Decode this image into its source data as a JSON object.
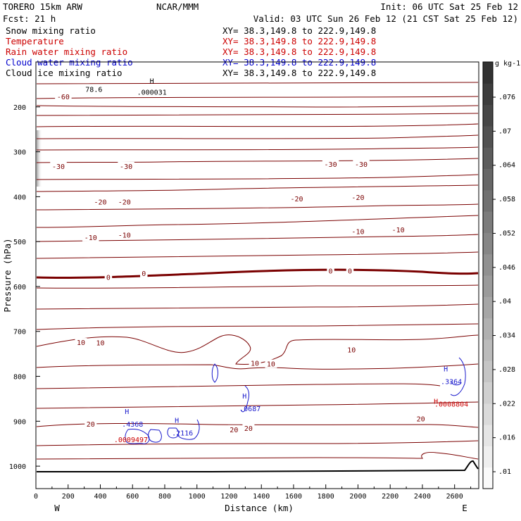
{
  "header": {
    "model": "TORERO  15km ARW",
    "center": "NCAR/MMM",
    "init": "Init: 06 UTC Sat 25 Feb 12",
    "fcst": "Fcst:    21 h",
    "valid": "Valid: 03 UTC Sun 26 Feb 12 (21 CST Sat 25 Feb 12)"
  },
  "legend": [
    {
      "name": "Snow mixing ratio",
      "xy": "XY=  38.3,149.8 to 222.9,149.8",
      "color": "#000000"
    },
    {
      "name": "Temperature",
      "xy": "XY=  38.3,149.8 to 222.9,149.8",
      "color": "#cc0000"
    },
    {
      "name": "Rain water mixing ratio",
      "xy": "XY=  38.3,149.8 to 222.9,149.8",
      "color": "#cc0000"
    },
    {
      "name": "Cloud water mixing ratio",
      "xy": "XY=  38.3,149.8 to 222.9,149.8",
      "color": "#0000cc"
    },
    {
      "name": "Cloud ice mixing ratio",
      "xy": "XY=  38.3,149.8 to 222.9,149.8",
      "color": "#000000"
    }
  ],
  "colors": {
    "temperature": "#7a0000",
    "cloud_water": "#1a1acc",
    "rain": "#cc0000",
    "terrain": "#000000"
  },
  "chart_data": {
    "type": "contour",
    "xlabel": "Distance (km)",
    "ylabel": "Pressure (hPa)",
    "x_ticks": [
      0,
      200,
      400,
      600,
      800,
      1000,
      1200,
      1400,
      1600,
      1800,
      2000,
      2200,
      2400,
      2600
    ],
    "y_ticks": [
      200,
      300,
      400,
      500,
      600,
      700,
      800,
      900,
      1000
    ],
    "xlim": [
      0,
      2750
    ],
    "ylim": [
      1050,
      100
    ],
    "x_end_labels": {
      "left": "W",
      "right": "E"
    },
    "colorbar": {
      "unit": "g kg-1",
      "ticks": [
        ".01",
        ".016",
        ".022",
        ".028",
        ".034",
        ".04",
        ".046",
        ".052",
        ".058",
        ".064",
        ".07",
        ".076"
      ]
    },
    "temperature_labels": [
      {
        "text": "-60",
        "x": 170,
        "p": 177
      },
      {
        "text": "-30",
        "x": 140,
        "p": 332
      },
      {
        "text": "-30",
        "x": 560,
        "p": 332
      },
      {
        "text": "-30",
        "x": 1830,
        "p": 327
      },
      {
        "text": "-30",
        "x": 2020,
        "p": 327
      },
      {
        "text": "-20",
        "x": 400,
        "p": 411
      },
      {
        "text": "-20",
        "x": 550,
        "p": 411
      },
      {
        "text": "-20",
        "x": 1620,
        "p": 404
      },
      {
        "text": "-20",
        "x": 2000,
        "p": 401
      },
      {
        "text": "-10",
        "x": 340,
        "p": 490
      },
      {
        "text": "-10",
        "x": 550,
        "p": 485
      },
      {
        "text": "-10",
        "x": 2000,
        "p": 477
      },
      {
        "text": "-10",
        "x": 2250,
        "p": 473
      },
      {
        "text": "0",
        "x": 450,
        "p": 579
      },
      {
        "text": "0",
        "x": 670,
        "p": 570
      },
      {
        "text": "0",
        "x": 1830,
        "p": 565
      },
      {
        "text": "0",
        "x": 1950,
        "p": 565
      },
      {
        "text": "10",
        "x": 280,
        "p": 724
      },
      {
        "text": "10",
        "x": 400,
        "p": 725
      },
      {
        "text": "10",
        "x": 1360,
        "p": 770
      },
      {
        "text": "10",
        "x": 1460,
        "p": 772
      },
      {
        "text": "10",
        "x": 1960,
        "p": 740
      },
      {
        "text": "20",
        "x": 340,
        "p": 906
      },
      {
        "text": "20",
        "x": 1230,
        "p": 918
      },
      {
        "text": "20",
        "x": 1320,
        "p": 915
      },
      {
        "text": "20",
        "x": 2390,
        "p": 894
      }
    ],
    "maxima": [
      {
        "text": ".4368",
        "x": 600,
        "p": 906,
        "kind": "cloud water",
        "color": "#1a1acc"
      },
      {
        "text": ".2116",
        "x": 910,
        "p": 925,
        "kind": "cloud water",
        "color": "#1a1acc"
      },
      {
        "text": ".0687",
        "x": 1330,
        "p": 871,
        "kind": "cloud water",
        "color": "#1a1acc"
      },
      {
        "text": ".3364",
        "x": 2580,
        "p": 811,
        "kind": "cloud water",
        "color": "#1a1acc"
      },
      {
        "text": ".0009497",
        "x": 590,
        "p": 940,
        "kind": "rain",
        "color": "#cc0000"
      },
      {
        "text": ".0008804",
        "x": 2580,
        "p": 861,
        "kind": "rain",
        "color": "#cc0000"
      },
      {
        "text": ".000031",
        "x": 720,
        "p": 167,
        "kind": "cloud ice",
        "color": "#000000"
      },
      {
        "text": "78.6",
        "x": 360,
        "p": 160,
        "kind": "snow",
        "color": "#000000"
      }
    ],
    "max_marker": "H"
  }
}
